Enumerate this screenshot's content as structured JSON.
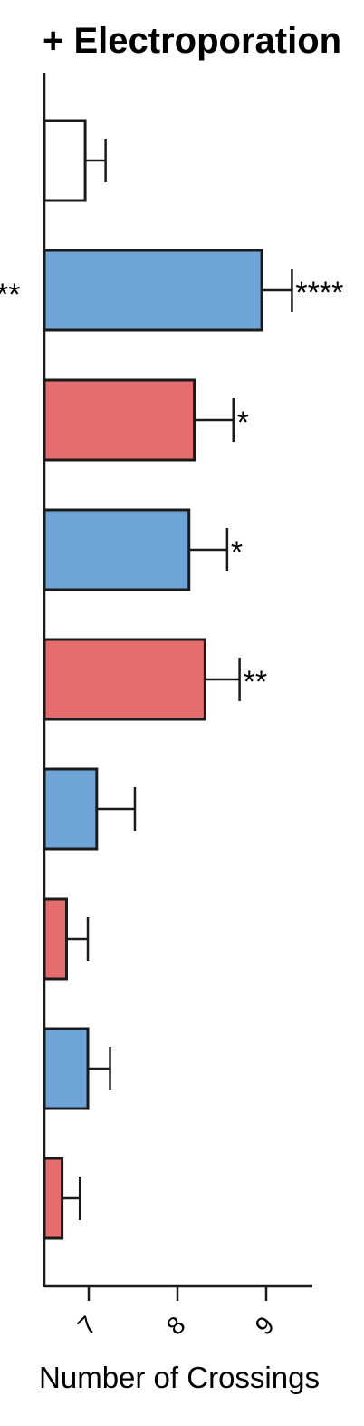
{
  "chart_data": {
    "type": "bar",
    "orientation": "horizontal",
    "title": "+ Electroporation",
    "xlabel": "Number of Crossings",
    "ylabel": "",
    "xlim": [
      6.5,
      9.5
    ],
    "xticks": [
      "7",
      "8",
      "9"
    ],
    "left_cut_label": "**",
    "colors": {
      "white": "#ffffff",
      "blue": "#6fa5d6",
      "red": "#e46c6c",
      "stroke": "#1a1a1a"
    },
    "bars": [
      {
        "value": 6.96,
        "error": 0.23,
        "color": "white",
        "significance": ""
      },
      {
        "value": 8.95,
        "error": 0.34,
        "color": "blue",
        "significance": "****"
      },
      {
        "value": 8.19,
        "error": 0.44,
        "color": "red",
        "significance": "*"
      },
      {
        "value": 8.13,
        "error": 0.43,
        "color": "blue",
        "significance": "*"
      },
      {
        "value": 8.31,
        "error": 0.39,
        "color": "red",
        "significance": "**"
      },
      {
        "value": 7.09,
        "error": 0.43,
        "color": "blue",
        "significance": ""
      },
      {
        "value": 6.75,
        "error": 0.24,
        "color": "red",
        "significance": ""
      },
      {
        "value": 6.99,
        "error": 0.25,
        "color": "blue",
        "significance": ""
      },
      {
        "value": 6.7,
        "error": 0.2,
        "color": "red",
        "significance": ""
      }
    ]
  }
}
